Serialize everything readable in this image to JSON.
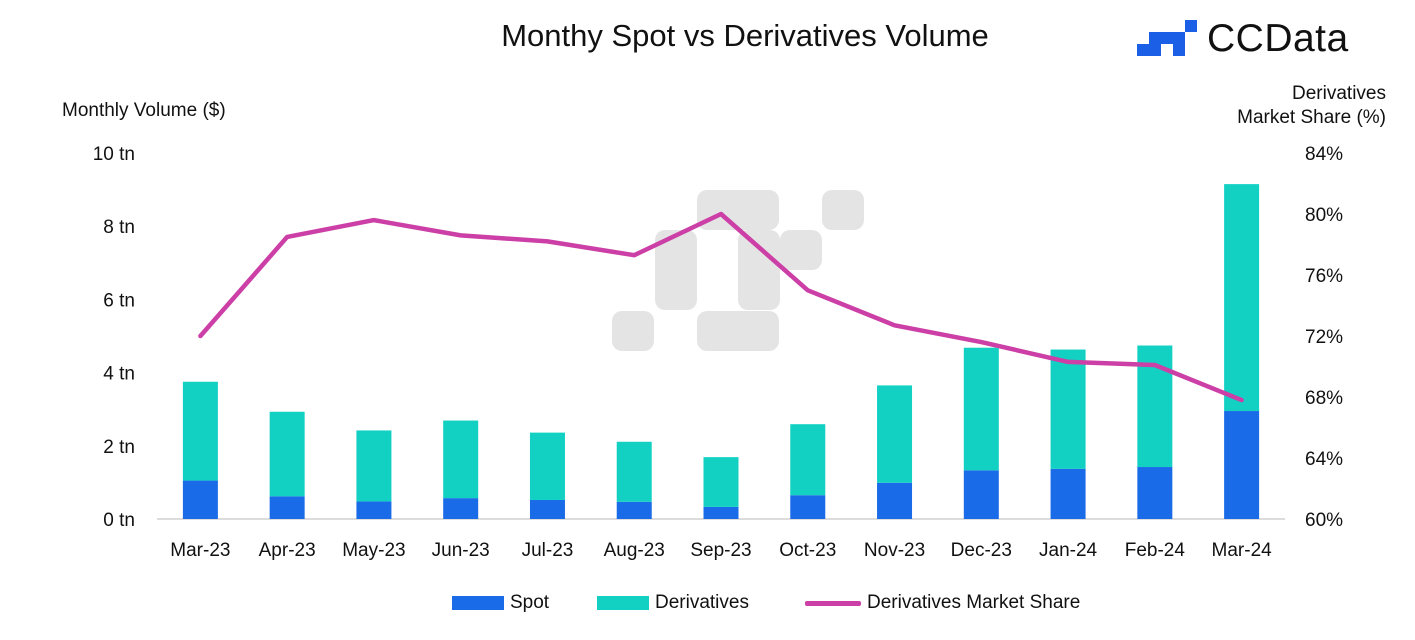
{
  "title": "Monthy Spot vs Derivatives Volume",
  "brand": {
    "name": "CCData",
    "logo_icon": "ccdata-logo-icon",
    "color": "#1a5fe6"
  },
  "chart_data": {
    "type": "bar",
    "stacked": true,
    "title": "Monthy Spot vs Derivatives Volume",
    "xlabel": "",
    "ylabel": "Monthly Volume ($)",
    "y2label_line1": "Derivatives",
    "y2label_line2": "Market Share (%)",
    "categories": [
      "Mar-23",
      "Apr-23",
      "May-23",
      "Jun-23",
      "Jul-23",
      "Aug-23",
      "Sep-23",
      "Oct-23",
      "Nov-23",
      "Dec-23",
      "Jan-24",
      "Feb-24",
      "Mar-24"
    ],
    "ylim": [
      0,
      10
    ],
    "y_ticks": [
      0,
      2,
      4,
      6,
      8,
      10
    ],
    "y_tick_labels": [
      "0 tn",
      "2 tn",
      "4 tn",
      "6 tn",
      "8 tn",
      "10 tn"
    ],
    "y2lim": [
      60,
      84
    ],
    "y2_ticks": [
      60,
      64,
      68,
      72,
      76,
      80,
      84
    ],
    "y2_tick_labels": [
      "60%",
      "64%",
      "68%",
      "72%",
      "76%",
      "80%",
      "84%"
    ],
    "series": [
      {
        "name": "Spot",
        "kind": "bar",
        "axis": "left",
        "color": "#1a6be8",
        "values": [
          1.05,
          0.62,
          0.48,
          0.57,
          0.52,
          0.47,
          0.33,
          0.65,
          0.99,
          1.33,
          1.37,
          1.42,
          2.95
        ]
      },
      {
        "name": "Derivatives",
        "kind": "bar",
        "axis": "left",
        "color": "#12d1c3",
        "values": [
          2.7,
          2.31,
          1.94,
          2.12,
          1.84,
          1.64,
          1.36,
          1.94,
          2.66,
          3.35,
          3.26,
          3.32,
          6.2
        ]
      },
      {
        "name": "Derivatives Market Share",
        "kind": "line",
        "axis": "right",
        "color": "#cc3fa6",
        "values": [
          72.0,
          78.5,
          79.6,
          78.6,
          78.2,
          77.3,
          80.0,
          75.0,
          72.7,
          71.6,
          70.3,
          70.1,
          67.8
        ]
      }
    ],
    "legend_position": "bottom"
  }
}
